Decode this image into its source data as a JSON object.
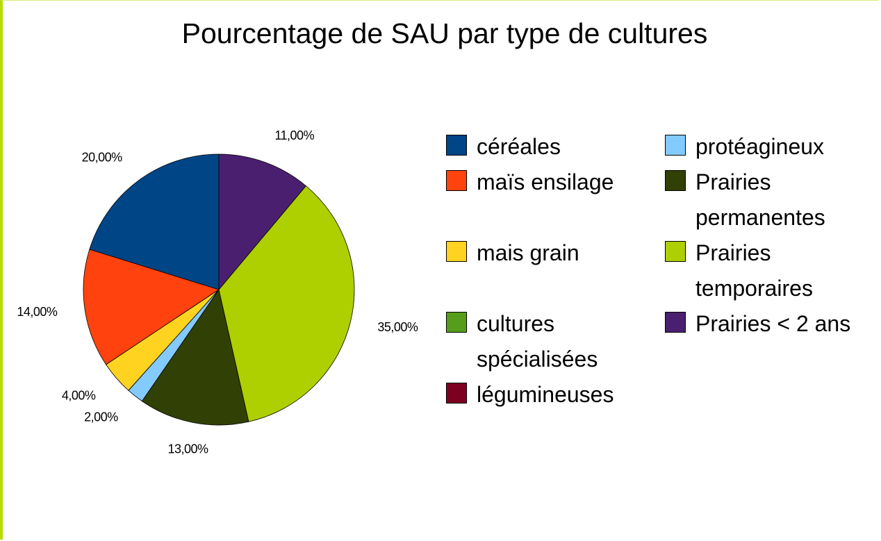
{
  "chart_data": {
    "type": "pie",
    "title": "Pourcentage de SAU par type de cultures",
    "categories": [
      "céréales",
      "maïs ensilage",
      "mais grain",
      "cultures spécialisées",
      "légumineuses",
      "protéagineux",
      "Prairies permanentes",
      "Prairies temporaires",
      "Prairies < 2 ans"
    ],
    "values": [
      20,
      14,
      4,
      0,
      0,
      2,
      13,
      35,
      11
    ],
    "value_labels": [
      "20,00%",
      "14,00%",
      "4,00%",
      null,
      null,
      "2,00%",
      "13,00%",
      "35,00%",
      "11,00%"
    ],
    "colors": [
      "#004586",
      "#ff420e",
      "#ffd320",
      "#579d1c",
      "#7e0021",
      "#83caff",
      "#314004",
      "#aecf00",
      "#4b1f6f"
    ],
    "legend": "right"
  }
}
